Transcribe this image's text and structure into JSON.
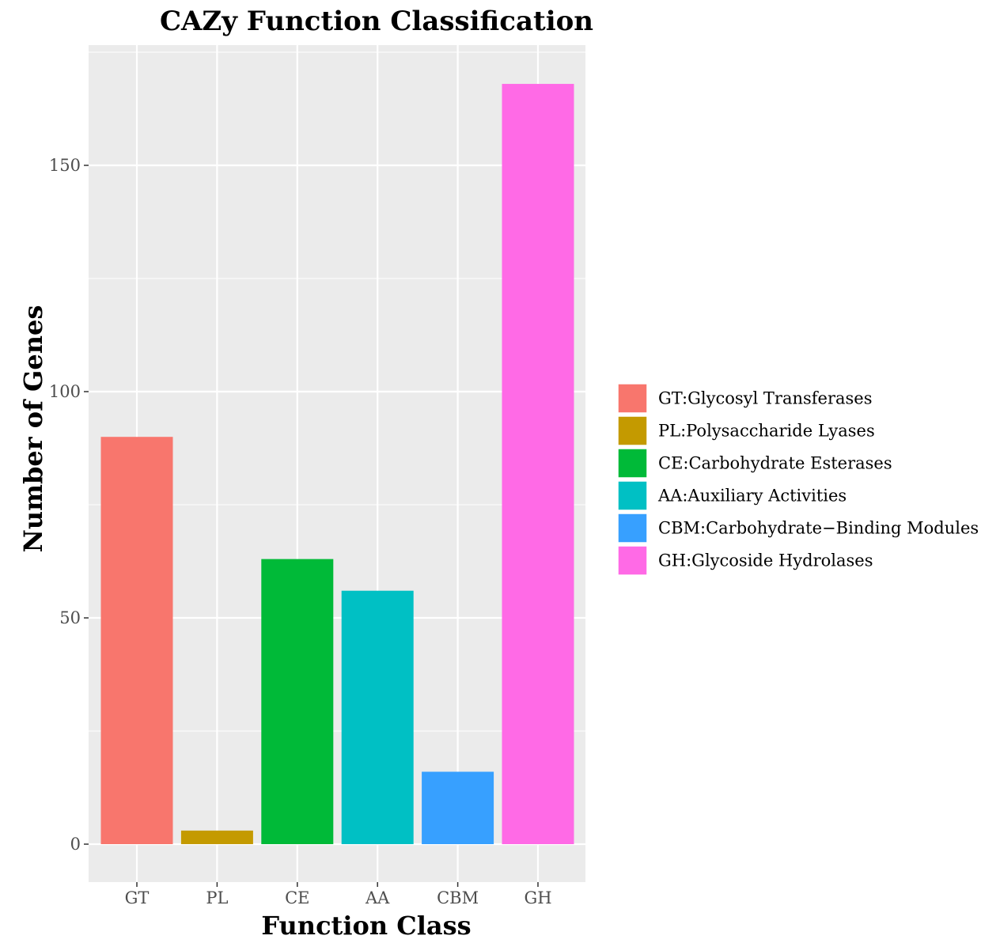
{
  "chart_data": {
    "type": "bar",
    "title": "CAZy Function Classification",
    "xlabel": "Function Class",
    "ylabel": "Number of Genes",
    "categories": [
      "GT",
      "PL",
      "CE",
      "AA",
      "CBM",
      "GH"
    ],
    "values": [
      90,
      3,
      63,
      56,
      16,
      168
    ],
    "colors": [
      "#F8766D",
      "#C49A00",
      "#00BA38",
      "#00C0C4",
      "#37A0FF",
      "#FF6AE6"
    ],
    "yticks": [
      0,
      50,
      100,
      150
    ],
    "ytick_labels": [
      "0",
      "50",
      "100",
      "150"
    ],
    "ylim": [
      -8,
      176
    ],
    "grid": true,
    "panel_background": "#EBEBEB",
    "grid_color": "#FFFFFF",
    "legend_position": "right",
    "legend": [
      {
        "label": "GT:Glycosyl Transferases",
        "color": "#F8766D"
      },
      {
        "label": "PL:Polysaccharide Lyases",
        "color": "#C49A00"
      },
      {
        "label": "CE:Carbohydrate Esterases",
        "color": "#00BA38"
      },
      {
        "label": "AA:Auxiliary Activities",
        "color": "#00C0C4"
      },
      {
        "label": "CBM:Carbohydrate−Binding Modules",
        "color": "#37A0FF"
      },
      {
        "label": "GH:Glycoside Hydrolases",
        "color": "#FF6AE6"
      }
    ]
  }
}
